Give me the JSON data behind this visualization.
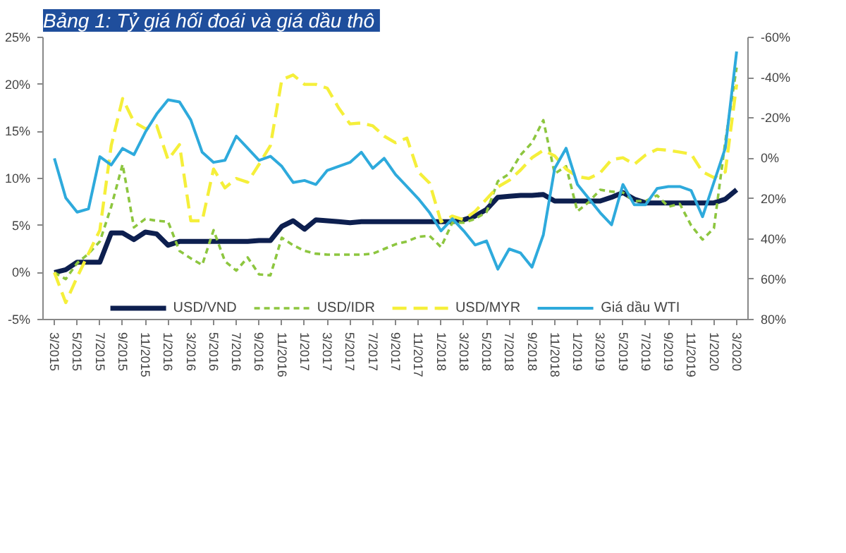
{
  "chart_data": {
    "type": "line",
    "title": "Bảng 1:  Tỷ giá hối đoái và giá dầu thô",
    "x": [
      "2015-03",
      "2015-04",
      "2015-05",
      "2015-06",
      "2015-07",
      "2015-08",
      "2015-09",
      "2015-10",
      "2015-11",
      "2015-12",
      "2016-01",
      "2016-02",
      "2016-03",
      "2016-04",
      "2016-05",
      "2016-06",
      "2016-07",
      "2016-08",
      "2016-09",
      "2016-10",
      "2016-11",
      "2016-12",
      "2017-01",
      "2017-02",
      "2017-03",
      "2017-04",
      "2017-05",
      "2017-06",
      "2017-07",
      "2017-08",
      "2017-09",
      "2017-10",
      "2017-11",
      "2017-12",
      "2018-01",
      "2018-02",
      "2018-03",
      "2018-04",
      "2018-05",
      "2018-06",
      "2018-07",
      "2018-08",
      "2018-09",
      "2018-10",
      "2018-11",
      "2018-12",
      "2019-01",
      "2019-02",
      "2019-03",
      "2019-04",
      "2019-05",
      "2019-06",
      "2019-07",
      "2019-08",
      "2019-09",
      "2019-10",
      "2019-11",
      "2019-12",
      "2020-01",
      "2020-02",
      "2020-03"
    ],
    "xlim": [
      "2015-02",
      "2020-04"
    ],
    "xticks": [
      {
        "value": "2015-03",
        "label": "3/2015"
      },
      {
        "value": "2015-05",
        "label": "5/2015"
      },
      {
        "value": "2015-07",
        "label": "7/2015"
      },
      {
        "value": "2015-09",
        "label": "9/2015"
      },
      {
        "value": "2015-11",
        "label": "11/2015"
      },
      {
        "value": "2016-01",
        "label": "1/2016"
      },
      {
        "value": "2016-03",
        "label": "3/2016"
      },
      {
        "value": "2016-05",
        "label": "5/2016"
      },
      {
        "value": "2016-07",
        "label": "7/2016"
      },
      {
        "value": "2016-09",
        "label": "9/2016"
      },
      {
        "value": "2016-11",
        "label": "11/2016"
      },
      {
        "value": "2017-01",
        "label": "1/2017"
      },
      {
        "value": "2017-03",
        "label": "3/2017"
      },
      {
        "value": "2017-05",
        "label": "5/2017"
      },
      {
        "value": "2017-07",
        "label": "7/2017"
      },
      {
        "value": "2017-09",
        "label": "9/2017"
      },
      {
        "value": "2017-11",
        "label": "11/2017"
      },
      {
        "value": "2018-01",
        "label": "1/2018"
      },
      {
        "value": "2018-03",
        "label": "3/2018"
      },
      {
        "value": "2018-05",
        "label": "5/2018"
      },
      {
        "value": "2018-07",
        "label": "7/2018"
      },
      {
        "value": "2018-09",
        "label": "9/2018"
      },
      {
        "value": "2018-11",
        "label": "11/2018"
      },
      {
        "value": "2019-01",
        "label": "1/2019"
      },
      {
        "value": "2019-03",
        "label": "3/2019"
      },
      {
        "value": "2019-05",
        "label": "5/2019"
      },
      {
        "value": "2019-07",
        "label": "7/2019"
      },
      {
        "value": "2019-09",
        "label": "9/2019"
      },
      {
        "value": "2019-11",
        "label": "11/2019"
      },
      {
        "value": "2020-01",
        "label": "1/2020"
      },
      {
        "value": "2020-03",
        "label": "3/2020"
      }
    ],
    "ylim": [
      -5,
      25
    ],
    "yticks": [
      {
        "value": -5,
        "label": "-5%"
      },
      {
        "value": 0,
        "label": "0%"
      },
      {
        "value": 5,
        "label": "5%"
      },
      {
        "value": 10,
        "label": "10%"
      },
      {
        "value": 15,
        "label": "15%"
      },
      {
        "value": 20,
        "label": "20%"
      },
      {
        "value": 25,
        "label": "25%"
      }
    ],
    "y2lim": [
      80,
      -60
    ],
    "y2ticks": [
      {
        "value": -60,
        "label": "-60%"
      },
      {
        "value": -40,
        "label": "-40%"
      },
      {
        "value": -20,
        "label": "-20%"
      },
      {
        "value": 0,
        "label": "0%"
      },
      {
        "value": 20,
        "label": "20%"
      },
      {
        "value": 40,
        "label": "40%"
      },
      {
        "value": 60,
        "label": "60%"
      },
      {
        "value": 80,
        "label": "80%"
      }
    ],
    "grid": false,
    "legend": "bottom",
    "marker": "none",
    "series": [
      {
        "name": "USD/VND",
        "color": "#0d1f4f",
        "line_style": "solid",
        "values": [
          0,
          0.3,
          1.1,
          1.1,
          1.1,
          4.2,
          4.2,
          3.5,
          4.3,
          4.1,
          2.9,
          3.3,
          3.3,
          3.3,
          3.3,
          3.3,
          3.3,
          3.3,
          3.4,
          3.4,
          4.9,
          5.5,
          4.6,
          5.6,
          5.5,
          5.4,
          5.3,
          5.4,
          5.4,
          5.4,
          5.4,
          5.4,
          5.4,
          5.4,
          5.4,
          5.4,
          5.6,
          6.0,
          6.7,
          8.0,
          8.1,
          8.2,
          8.2,
          8.3,
          7.6,
          7.6,
          7.6,
          7.6,
          7.6,
          8.0,
          8.5,
          7.8,
          7.4,
          7.4,
          7.4,
          7.4,
          7.4,
          7.4,
          7.4,
          7.8,
          8.8
        ]
      },
      {
        "name": "USD/IDR",
        "color": "#8dc63f",
        "line_style": "dashed",
        "values": [
          0,
          -0.7,
          1.0,
          2.0,
          3.3,
          7.0,
          11.5,
          4.8,
          5.7,
          5.5,
          5.4,
          2.3,
          1.5,
          0.8,
          4.5,
          1.2,
          0.2,
          1.6,
          -0.2,
          -0.3,
          3.7,
          2.9,
          2.3,
          2.0,
          1.9,
          1.9,
          1.9,
          1.9,
          2.0,
          2.5,
          3.0,
          3.3,
          3.8,
          3.9,
          2.7,
          5.3,
          5.3,
          5.7,
          6.4,
          9.7,
          10.5,
          12.5,
          13.8,
          16.2,
          10.5,
          11.3,
          6.5,
          7.5,
          8.8,
          8.6,
          8.5,
          7.6,
          7.6,
          8.2,
          7.0,
          7.3,
          5.0,
          3.5,
          4.7,
          13.9,
          21.8
        ]
      },
      {
        "name": "USD/MYR",
        "color": "#f5ef3a",
        "line_style": "dashed",
        "values": [
          0,
          -3.2,
          -0.5,
          2.0,
          4.5,
          13.5,
          18.5,
          16.0,
          15.3,
          15.6,
          12.0,
          13.6,
          5.5,
          5.5,
          11.0,
          9.0,
          10.0,
          9.6,
          11.5,
          13.5,
          20.5,
          21.0,
          20.0,
          20.0,
          19.6,
          17.5,
          15.8,
          15.9,
          15.6,
          14.5,
          13.8,
          14.3,
          10.7,
          9.5,
          5.4,
          6.0,
          5.6,
          6.5,
          7.8,
          9.1,
          9.8,
          10.9,
          12.2,
          13.0,
          12.4,
          11.0,
          10.2,
          10.0,
          10.6,
          12.0,
          12.2,
          11.5,
          12.5,
          13.1,
          13.0,
          12.8,
          12.6,
          10.7,
          10.1,
          10.7,
          20.0
        ]
      },
      {
        "name": "Giá dầu WTI",
        "color": "#2eaadc",
        "line_style": "solid",
        "axis": "y2",
        "values": [
          0,
          19.6,
          26.7,
          25.1,
          -0.8,
          3.3,
          -4.9,
          -1.8,
          -13,
          -22,
          -29,
          -28,
          -19,
          -3,
          2,
          1,
          -11,
          -5,
          1,
          -1,
          4,
          12,
          11,
          13,
          6,
          4,
          2,
          -3,
          5,
          0,
          8,
          14,
          20,
          27,
          36,
          30,
          36,
          43,
          41,
          55,
          45,
          47,
          54,
          38,
          5,
          -5,
          13,
          20,
          27,
          33,
          13,
          23,
          23,
          15,
          14,
          14,
          16,
          29,
          12,
          -5,
          -53
        ]
      }
    ]
  }
}
